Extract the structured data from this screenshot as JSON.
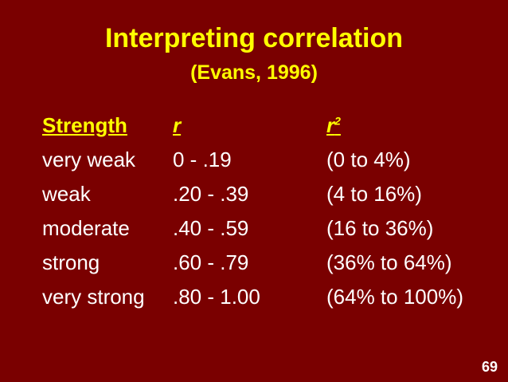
{
  "slide": {
    "title": "Interpreting correlation",
    "subtitle": "(Evans, 1996)",
    "page_number": "69"
  },
  "table": {
    "headers": {
      "strength": "Strength",
      "r": "r",
      "r2_base": "r",
      "r2_sup": "2"
    },
    "rows": [
      {
        "strength": "very weak",
        "r": "0 - .19",
        "r2": "(0 to 4%)"
      },
      {
        "strength": "weak",
        "r": ".20 - .39",
        "r2": "(4 to 16%)"
      },
      {
        "strength": "moderate",
        "r": ".40 - .59",
        "r2": "(16 to 36%)"
      },
      {
        "strength": "strong",
        "r": ".60 - .79",
        "r2": "(36% to 64%)"
      },
      {
        "strength": "very strong",
        "r": ".80 - 1.00",
        "r2": "(64% to 100%)"
      }
    ]
  },
  "colors": {
    "background": "#7a0000",
    "title": "#ffff00",
    "body_text": "#ffffff"
  }
}
